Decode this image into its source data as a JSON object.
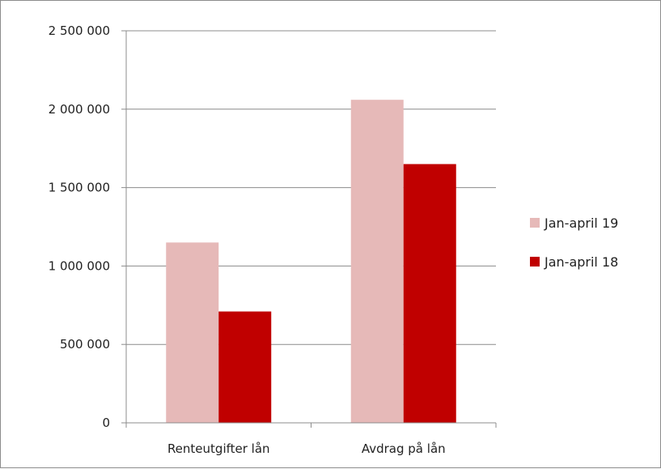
{
  "chart_data": {
    "type": "bar",
    "categories": [
      "Renteutgifter lån",
      "Avdrag på lån"
    ],
    "series": [
      {
        "name": "Jan-april 19",
        "values": [
          1150000,
          2060000
        ],
        "color": "#e6b9b8"
      },
      {
        "name": "Jan-april 18",
        "values": [
          710000,
          1650000
        ],
        "color": "#c00000"
      }
    ],
    "yticks": [
      "0",
      "500 000",
      "1 000 000",
      "1 500 000",
      "2 000 000",
      "2 500 000"
    ],
    "ylim": [
      0,
      2500000
    ],
    "grid": true,
    "legend": "right"
  }
}
